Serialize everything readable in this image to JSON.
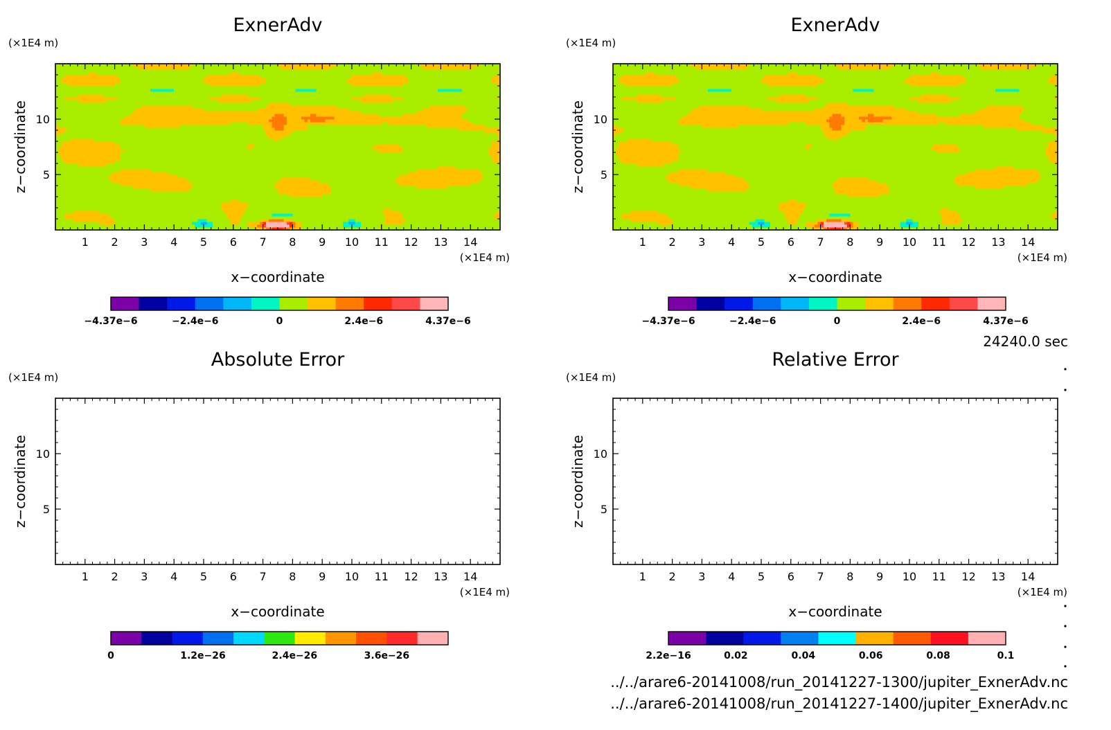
{
  "time_label": "24240.0 sec",
  "files": [
    "../../arare6-20141008/run_20141227-1300/jupiter_ExnerAdv.nc",
    "../../arare6-20141008/run_20141227-1400/jupiter_ExnerAdv.nc"
  ],
  "palettes": {
    "field": [
      "#7b00a8",
      "#00009e",
      "#0018e8",
      "#0070f0",
      "#00b6f6",
      "#00f4c4",
      "#a8ec00",
      "#ffc000",
      "#ff7a00",
      "#ff2a00",
      "#ff4848",
      "#ffb6b6"
    ],
    "abserr": [
      "#7b00a8",
      "#00009e",
      "#0018e8",
      "#0070f0",
      "#00d8ff",
      "#30e810",
      "#ffea00",
      "#ff9600",
      "#ff5000",
      "#ff2a2a",
      "#ffb0b0"
    ],
    "relerr": [
      "#7b00a8",
      "#00009e",
      "#0018e8",
      "#0080f0",
      "#00ffff",
      "#ffb000",
      "#ff5a00",
      "#ff1020",
      "#ffb0b0"
    ]
  },
  "chart_data": [
    {
      "id": "top-left",
      "type": "heatmap",
      "title": "ExnerAdv",
      "xlabel": "x−coordinate",
      "ylabel": "z−coordinate",
      "x_unit": "(×1E4 m)",
      "y_unit": "(×1E4 m)",
      "xlim": [
        0,
        15
      ],
      "ylim": [
        0,
        15
      ],
      "x_ticks": [
        "1",
        "2",
        "3",
        "4",
        "5",
        "6",
        "7",
        "8",
        "9",
        "10",
        "11",
        "12",
        "13",
        "14"
      ],
      "y_ticks": [
        "5",
        "10"
      ],
      "field": "ExnerAdv",
      "colorbar": {
        "palette": "field",
        "labels": [
          "−4.37e−6",
          "−2.4e−6",
          "0",
          "2.4e−6",
          "4.37e−6"
        ],
        "label_pos": [
          0,
          0.25,
          0.5,
          0.75,
          1
        ]
      }
    },
    {
      "id": "top-right",
      "type": "heatmap",
      "title": "ExnerAdv",
      "xlabel": "x−coordinate",
      "ylabel": "z−coordinate",
      "x_unit": "(×1E4 m)",
      "y_unit": "(×1E4 m)",
      "xlim": [
        0,
        15
      ],
      "ylim": [
        0,
        15
      ],
      "x_ticks": [
        "1",
        "2",
        "3",
        "4",
        "5",
        "6",
        "7",
        "8",
        "9",
        "10",
        "11",
        "12",
        "13",
        "14"
      ],
      "y_ticks": [
        "5",
        "10"
      ],
      "field": "ExnerAdv",
      "colorbar": {
        "palette": "field",
        "labels": [
          "−4.37e−6",
          "−2.4e−6",
          "0",
          "2.4e−6",
          "4.37e−6"
        ],
        "label_pos": [
          0,
          0.25,
          0.5,
          0.75,
          1
        ]
      }
    },
    {
      "id": "bottom-left",
      "type": "heatmap",
      "title": "Absolute Error",
      "xlabel": "x−coordinate",
      "ylabel": "z−coordinate",
      "x_unit": "(×1E4 m)",
      "y_unit": "(×1E4 m)",
      "xlim": [
        0,
        15
      ],
      "ylim": [
        0,
        15
      ],
      "x_ticks": [
        "1",
        "2",
        "3",
        "4",
        "5",
        "6",
        "7",
        "8",
        "9",
        "10",
        "11",
        "12",
        "13",
        "14"
      ],
      "y_ticks": [
        "5",
        "10"
      ],
      "field": "empty",
      "colorbar": {
        "palette": "abserr",
        "labels": [
          "0",
          "1.2e−26",
          "2.4e−26",
          "3.6e−26"
        ],
        "label_pos": [
          0,
          0.273,
          0.545,
          0.818
        ]
      }
    },
    {
      "id": "bottom-right",
      "type": "heatmap",
      "title": "Relative Error",
      "xlabel": "x−coordinate",
      "ylabel": "z−coordinate",
      "x_unit": "(×1E4 m)",
      "y_unit": "(×1E4 m)",
      "xlim": [
        0,
        15
      ],
      "ylim": [
        0,
        15
      ],
      "x_ticks": [
        "1",
        "2",
        "3",
        "4",
        "5",
        "6",
        "7",
        "8",
        "9",
        "10",
        "11",
        "12",
        "13",
        "14"
      ],
      "y_ticks": [
        "5",
        "10"
      ],
      "field": "empty",
      "colorbar": {
        "palette": "relerr",
        "labels": [
          "2.2e−16",
          "0.02",
          "0.04",
          "0.06",
          "0.08",
          "0.1"
        ],
        "label_pos": [
          0,
          0.2,
          0.4,
          0.6,
          0.8,
          1
        ]
      }
    }
  ]
}
